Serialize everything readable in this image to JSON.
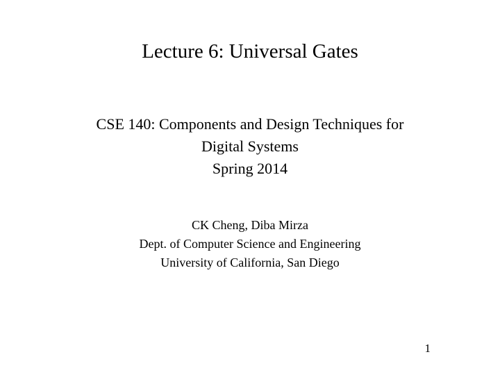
{
  "title": "Lecture 6: Universal Gates",
  "course": {
    "line1": "CSE 140: Components and Design Techniques for",
    "line2": "Digital Systems",
    "term": "Spring 2014"
  },
  "authors": {
    "names": "CK Cheng, Diba Mirza",
    "dept": "Dept. of Computer Science and Engineering",
    "university": "University of California, San Diego"
  },
  "page_number": "1",
  "colors": {
    "background": "#ffffff",
    "text": "#000000"
  },
  "typography": {
    "family": "Times New Roman, serif",
    "title_size": 29,
    "course_size": 22,
    "author_size": 18,
    "page_size": 17
  }
}
